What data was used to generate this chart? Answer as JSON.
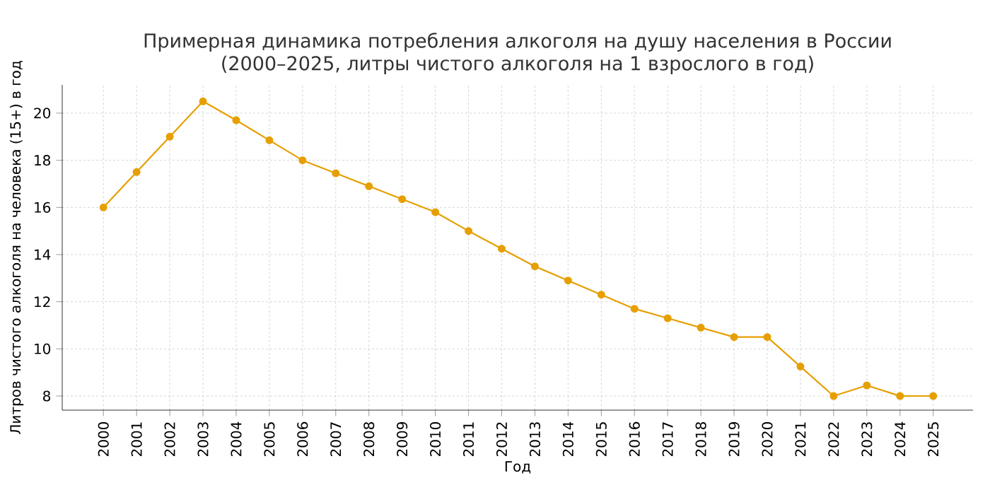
{
  "chart_data": {
    "type": "line",
    "title": "Примерная динамика потребления алкоголя на душу населения в России\n(2000–2025, литры чистого алкоголя на 1 взрослого в год)",
    "xlabel": "Год",
    "ylabel": "Литров чистого алкоголя на человека (15+) в год",
    "categories": [
      "2000",
      "2001",
      "2002",
      "2003",
      "2004",
      "2005",
      "2006",
      "2007",
      "2008",
      "2009",
      "2010",
      "2011",
      "2012",
      "2013",
      "2014",
      "2015",
      "2016",
      "2017",
      "2018",
      "2019",
      "2020",
      "2021",
      "2022",
      "2023",
      "2024",
      "2025"
    ],
    "series": [
      {
        "color": "#e69f00",
        "values": [
          16,
          17.5,
          19,
          20.5,
          19.7,
          18.85,
          18,
          17.45,
          16.9,
          16.35,
          15.8,
          15.0,
          14.25,
          13.5,
          12.9,
          12.3,
          11.7,
          11.3,
          10.9,
          10.5,
          10.5,
          9.25,
          8.0,
          8.45,
          8.0,
          8.0
        ]
      }
    ],
    "ylim": [
      7.4,
      21.2
    ],
    "yticks": [
      8,
      10,
      12,
      14,
      16,
      18,
      20
    ],
    "grid": true,
    "marker": "circle",
    "line_style": "solid"
  }
}
